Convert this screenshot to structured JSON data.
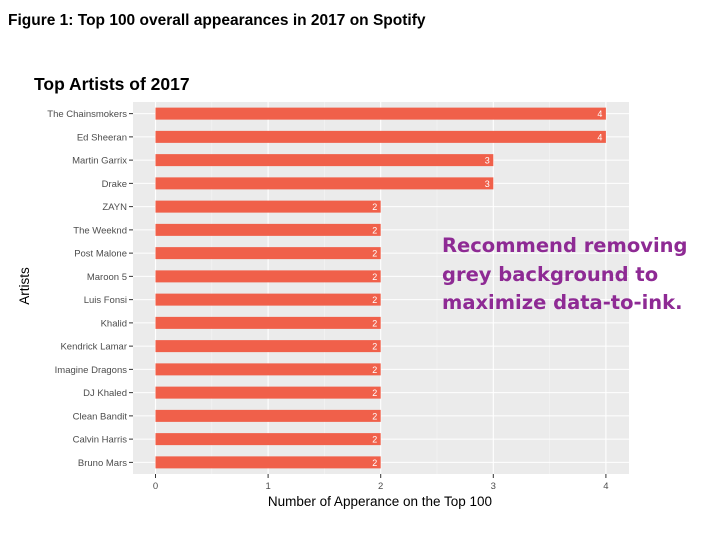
{
  "figure_caption": "Figure 1: Top 100 overall appearances in 2017 on Spotify",
  "annotation": [
    "Recommend removing",
    "grey background to",
    "maximize data-to-ink."
  ],
  "colors": {
    "bar": "#f0604a",
    "panel": "#ebebeb",
    "grid_major": "#ffffff",
    "annotation": "#8e2a94"
  },
  "chart_data": {
    "type": "bar",
    "orientation": "horizontal",
    "title": "Top Artists of 2017",
    "xlabel": "Number of Apperance on the Top 100",
    "ylabel": "Artists",
    "xlim": [
      0,
      4
    ],
    "xticks": [
      0,
      1,
      2,
      3,
      4
    ],
    "grid": true,
    "categories": [
      "The Chainsmokers",
      "Ed Sheeran",
      "Martin Garrix",
      "Drake",
      "ZAYN",
      "The Weeknd",
      "Post Malone",
      "Maroon 5",
      "Luis Fonsi",
      "Khalid",
      "Kendrick Lamar",
      "Imagine Dragons",
      "DJ Khaled",
      "Clean Bandit",
      "Calvin Harris",
      "Bruno Mars"
    ],
    "values": [
      4,
      4,
      3,
      3,
      2,
      2,
      2,
      2,
      2,
      2,
      2,
      2,
      2,
      2,
      2,
      2
    ]
  }
}
